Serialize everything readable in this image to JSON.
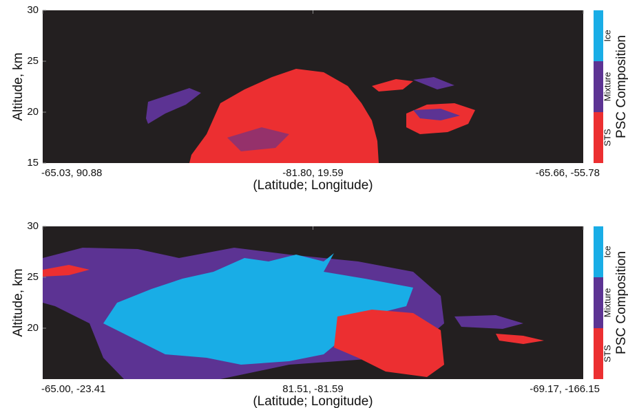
{
  "chart_data": [
    {
      "type": "curtain",
      "ylabel": "Altitude, km",
      "xlabel": "(Latitude; Longitude)",
      "categories": [
        "-65.03, 90.88",
        "-81.80, 19.59",
        "-65.66, -55.78"
      ],
      "ylim": [
        15,
        30
      ],
      "yticks": [
        15,
        20,
        25,
        30
      ],
      "colorbar": {
        "title": "PSC Composition",
        "labels": [
          "STS",
          "Mixture",
          "Ice"
        ],
        "colors": [
          "#ec2f31",
          "#5c3393",
          "#19ade6"
        ]
      }
    },
    {
      "type": "curtain",
      "ylabel": "Altitude, km",
      "xlabel": "(Latitude; Longitude)",
      "categories": [
        "-65.00, -23.41",
        "81.51, -81.59",
        "-69.17, -166.15"
      ],
      "ylim": [
        15,
        30
      ],
      "yticks": [
        20,
        25,
        30
      ],
      "colorbar": {
        "title": "PSC Composition",
        "labels": [
          "STS",
          "Mixture",
          "Ice"
        ],
        "colors": [
          "#ec2f31",
          "#5c3393",
          "#19ade6"
        ]
      }
    }
  ]
}
